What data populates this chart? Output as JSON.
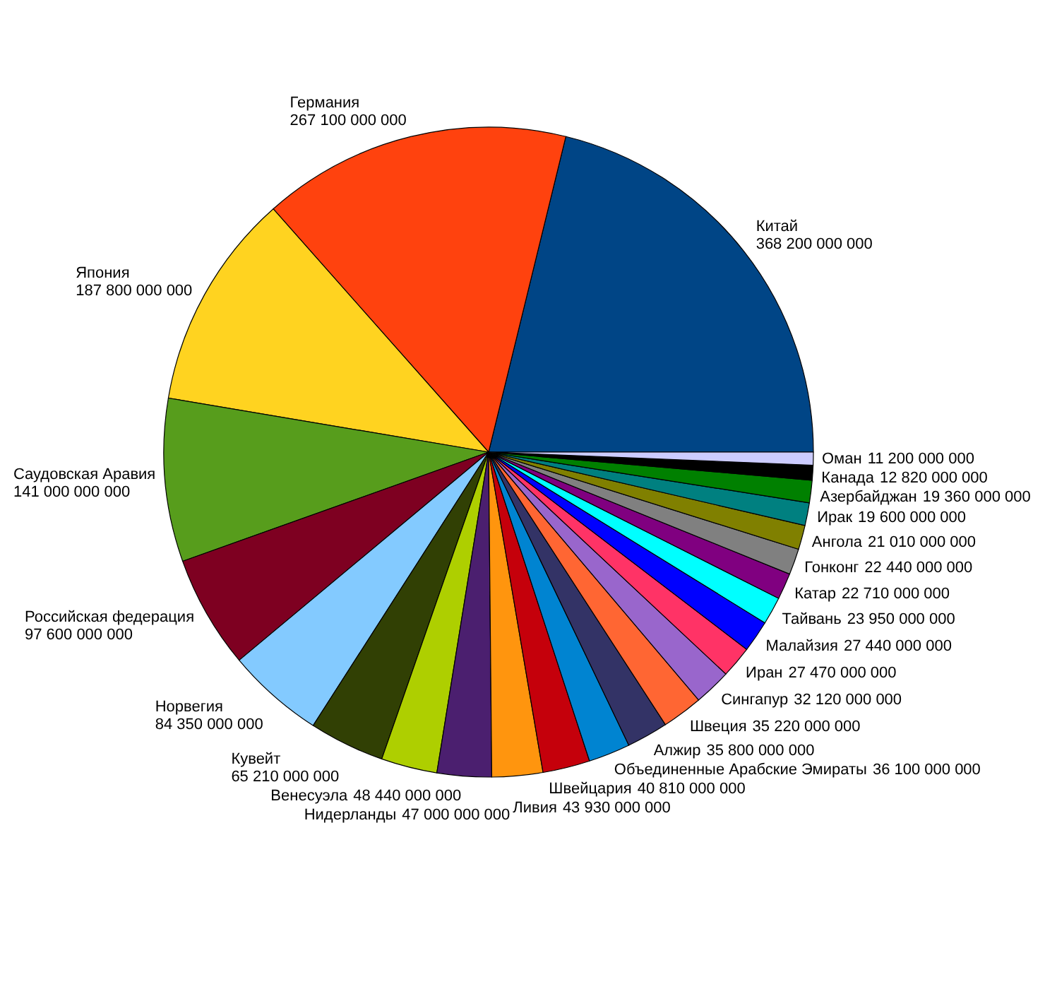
{
  "chart_data": {
    "type": "pie",
    "categories": [
      "Китай",
      "Германия",
      "Япония",
      "Саудовская Аравия",
      "Российская федерация",
      "Норвегия",
      "Кувейт",
      "Венесуэла",
      "Нидерланды",
      "Ливия",
      "Швейцария",
      "Объединенные Арабские Эмираты",
      "Алжир",
      "Швеция",
      "Сингапур",
      "Иран",
      "Малайзия",
      "Тайвань",
      "Катар",
      "Гонконг",
      "Ангола",
      "Ирак",
      "Азербайджан",
      "Канада",
      "Оман"
    ],
    "values": [
      368200000000,
      267100000000,
      187800000000,
      141000000000,
      97600000000,
      84350000000,
      65210000000,
      48440000000,
      47000000000,
      43930000000,
      40810000000,
      36100000000,
      35800000000,
      35220000000,
      32120000000,
      27470000000,
      27440000000,
      23950000000,
      22710000000,
      22440000000,
      21010000000,
      19600000000,
      19360000000,
      12820000000,
      11200000000
    ],
    "colors": [
      "#004586",
      "#ff420e",
      "#ffd320",
      "#579d1c",
      "#7e0021",
      "#83caff",
      "#314004",
      "#aecf00",
      "#4b1f6f",
      "#ff950e",
      "#c5000b",
      "#0084d1",
      "#333366",
      "#ff6633",
      "#9966cc",
      "#ff3366",
      "#0000ff",
      "#00ffff",
      "#800080",
      "#808080",
      "#808000",
      "#008080",
      "#008000",
      "#000000",
      "#ccccff"
    ],
    "data_labels": true
  }
}
